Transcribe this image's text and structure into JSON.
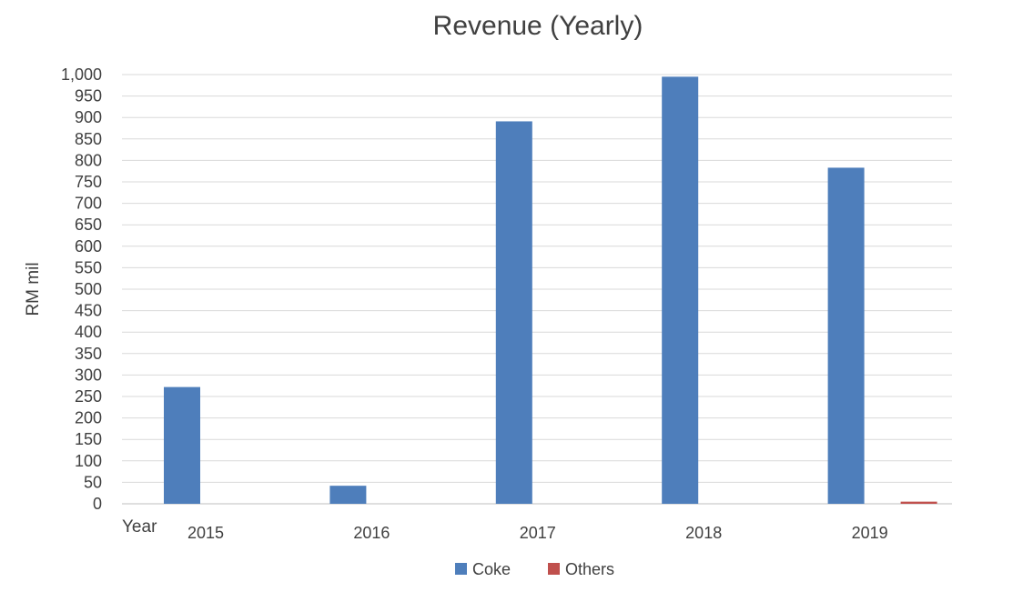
{
  "chart_data": {
    "type": "bar",
    "title": "Revenue (Yearly)",
    "xlabel": "Year",
    "ylabel": "RM mil",
    "categories": [
      "2015",
      "2016",
      "2017",
      "2018",
      "2019"
    ],
    "series": [
      {
        "name": "Coke",
        "color": "#4e7ebb",
        "values": [
          272,
          42,
          891,
          995,
          783
        ]
      },
      {
        "name": "Others",
        "color": "#c0504d",
        "values": [
          0,
          0,
          0,
          0,
          5
        ]
      }
    ],
    "ylim": [
      0,
      1000
    ],
    "ytick_step": 50,
    "ytick_labels": [
      "0",
      "50",
      "100",
      "150",
      "200",
      "250",
      "300",
      "350",
      "400",
      "450",
      "500",
      "550",
      "600",
      "650",
      "700",
      "750",
      "800",
      "850",
      "900",
      "950",
      "1,000"
    ],
    "grid": true,
    "legend": "bottom"
  }
}
